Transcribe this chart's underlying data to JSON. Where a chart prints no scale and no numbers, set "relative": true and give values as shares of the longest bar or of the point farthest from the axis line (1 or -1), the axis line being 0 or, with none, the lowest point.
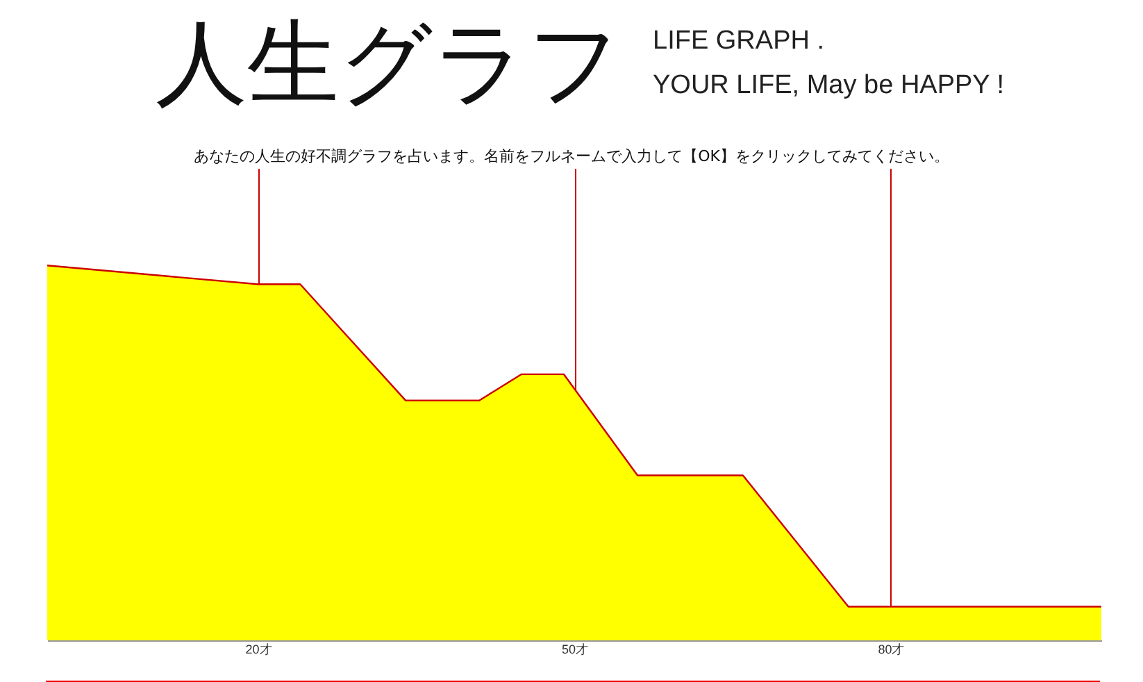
{
  "chart_data": {
    "type": "area",
    "title": "人生グラフ",
    "subtitle": "LIFE GRAPH .\nYOUR LIFE, May be HAPPY !",
    "annotations": [
      "あなたの人生の好不調グラフを占います。名前をフルネームで入力して【OK】をクリックしてみてください。"
    ],
    "x": [
      0,
      20,
      24,
      34,
      41,
      45,
      49,
      56,
      66,
      76,
      100
    ],
    "series": [
      {
        "color": "#ffff00",
        "values": [
          1,
          0.95,
          0.95,
          0.64,
          0.64,
          0.71,
          0.71,
          0.44,
          0.44,
          0.09,
          0.09
        ]
      }
    ],
    "relative": true,
    "xlim": [
      0,
      100
    ],
    "xticks": [
      {
        "value": 20,
        "label": "20才"
      },
      {
        "value": 50,
        "label": "50才"
      },
      {
        "value": 80,
        "label": "80才"
      }
    ],
    "grid": "x"
  }
}
